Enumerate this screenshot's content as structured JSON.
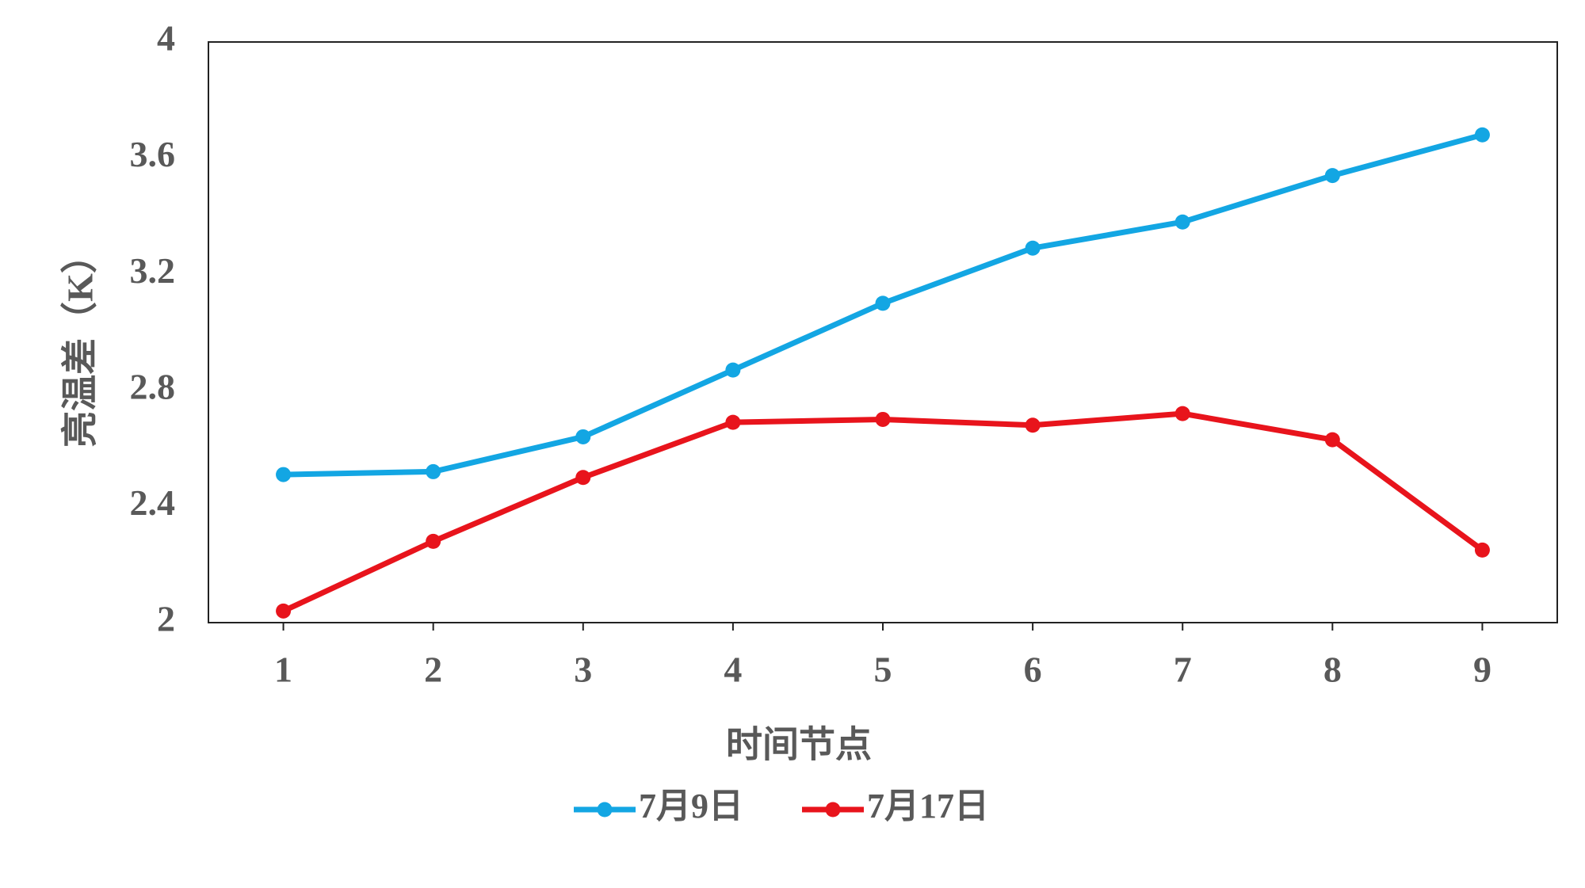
{
  "chart_data": {
    "type": "line",
    "x_label": "时间节点",
    "y_label": "亮温差（K）",
    "categories": [
      "1",
      "2",
      "3",
      "4",
      "5",
      "6",
      "7",
      "8",
      "9"
    ],
    "series": [
      {
        "name": "7月9日",
        "color": "#13a6e3",
        "values": [
          2.51,
          2.52,
          2.64,
          2.87,
          3.1,
          3.29,
          3.38,
          3.54,
          3.68
        ]
      },
      {
        "name": "7月17日",
        "color": "#e8141c",
        "values": [
          2.04,
          2.28,
          2.5,
          2.69,
          2.7,
          2.68,
          2.72,
          2.63,
          2.25
        ]
      }
    ],
    "ylim": [
      2,
      4
    ],
    "yticks": [
      2,
      2.4,
      2.8,
      3.2,
      3.6,
      4
    ],
    "grid": false,
    "legend": "bottom"
  }
}
